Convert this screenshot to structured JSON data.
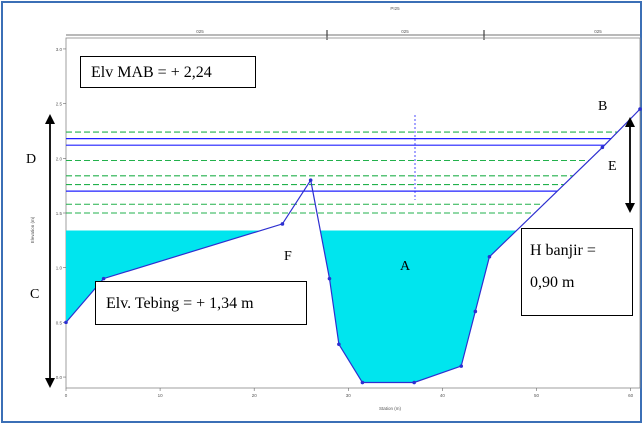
{
  "header": {
    "plan_label": "PI25",
    "top_scale_labels": [
      "025",
      "025",
      "025"
    ]
  },
  "annotations": {
    "elv_mab": "Elv MAB = + 2,24",
    "elv_tebing": "Elv. Tebing = + 1,34 m",
    "h_banjir_line1": "H banjir =",
    "h_banjir_line2": "0,90 m"
  },
  "point_labels": {
    "A": "A",
    "B": "B",
    "C": "C",
    "D": "D",
    "E": "E",
    "F": "F"
  },
  "axes": {
    "xlabel": "Station (m)",
    "ylabel": "Elevation (m)",
    "x_ticks": [
      "0",
      "10",
      "20",
      "30",
      "40",
      "50",
      "60"
    ],
    "y_ticks": [
      "3.0",
      "2.5",
      "2.0",
      "1.5",
      "1.0",
      "0.5",
      "0.0"
    ]
  },
  "colors": {
    "water": "#00e5ee",
    "ground_line": "#2d2fd0",
    "ws_green": "#22b14c",
    "ws_blue": "#2020ff",
    "frame_blue": "#3b6fb6"
  },
  "chart_data": {
    "type": "area",
    "ground_profile": {
      "x": [
        0,
        4,
        23,
        26,
        28,
        29,
        31.5,
        37,
        42,
        43.5,
        45,
        57,
        61
      ],
      "y": [
        0.5,
        0.9,
        1.4,
        1.8,
        0.9,
        0.3,
        -0.05,
        -0.05,
        0.1,
        0.6,
        1.1,
        2.1,
        2.45
      ]
    },
    "water_surface_elevation": 1.34,
    "flood_lines": [
      {
        "elevation": 2.24,
        "style": "dashed",
        "color": "#22b14c"
      },
      {
        "elevation": 2.18,
        "style": "solid",
        "color": "#2020ff"
      },
      {
        "elevation": 2.12,
        "style": "solid",
        "color": "#2020ff"
      },
      {
        "elevation": 1.98,
        "style": "dashed",
        "color": "#22b14c"
      },
      {
        "elevation": 1.84,
        "style": "dashed",
        "color": "#22b14c"
      },
      {
        "elevation": 1.76,
        "style": "dashed",
        "color": "#22b14c"
      },
      {
        "elevation": 1.7,
        "style": "solid",
        "color": "#2020ff"
      },
      {
        "elevation": 1.58,
        "style": "dashed",
        "color": "#22b14c"
      },
      {
        "elevation": 1.5,
        "style": "dashed",
        "color": "#22b14c"
      }
    ],
    "xlim": [
      0,
      61
    ],
    "ylim": [
      -0.1,
      3.1
    ]
  }
}
